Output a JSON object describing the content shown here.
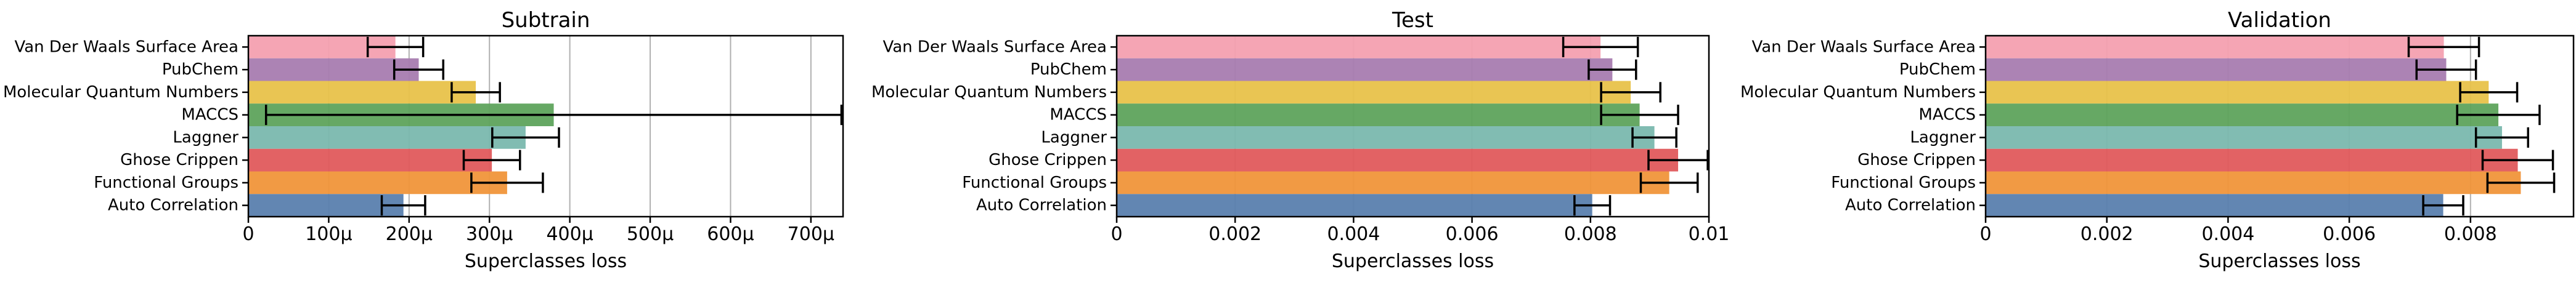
{
  "chart_data": [
    {
      "type": "bar",
      "orientation": "horizontal",
      "title": "Subtrain",
      "xlabel": "Superclasses loss",
      "ylabel": "",
      "xlim": [
        0,
        0.00074
      ],
      "xticks": [
        0,
        0.0001,
        0.0002,
        0.0003,
        0.0004,
        0.0005,
        0.0006,
        0.0007
      ],
      "xtick_labels": [
        "0",
        "100μ",
        "200μ",
        "300μ",
        "400μ",
        "500μ",
        "600μ",
        "700μ"
      ],
      "grid": "x",
      "categories": [
        "Van Der Waals Surface Area",
        "PubChem",
        "Molecular Quantum Numbers",
        "MACCS",
        "Laggner",
        "Ghose Crippen",
        "Functional Groups",
        "Auto Correlation"
      ],
      "values": [
        0.000183,
        0.000212,
        0.000283,
        0.00038,
        0.000345,
        0.000303,
        0.000322,
        0.000193
      ],
      "errors": [
        3.45e-05,
        3.05e-05,
        3e-05,
        0.000358,
        4.15e-05,
        3.5e-05,
        4.45e-05,
        2.7e-05
      ],
      "colors": [
        "#f4a0b0",
        "#a87cb0",
        "#e8c24a",
        "#5ea35c",
        "#7ab8ae",
        "#e05a5c",
        "#f0953a",
        "#5a7fae"
      ]
    },
    {
      "type": "bar",
      "orientation": "horizontal",
      "title": "Test",
      "xlabel": "Superclasses loss",
      "ylabel": "",
      "xlim": [
        0,
        0.01
      ],
      "xticks": [
        0,
        0.002,
        0.004,
        0.006,
        0.008,
        0.01
      ],
      "xtick_labels": [
        "0",
        "0.002",
        "0.004",
        "0.006",
        "0.008",
        "0.01"
      ],
      "grid": "x",
      "categories": [
        "Van Der Waals Surface Area",
        "PubChem",
        "Molecular Quantum Numbers",
        "MACCS",
        "Laggner",
        "Ghose Crippen",
        "Functional Groups",
        "Auto Correlation"
      ],
      "values": [
        0.00817,
        0.00837,
        0.00868,
        0.00883,
        0.00908,
        0.00948,
        0.00933,
        0.00803
      ],
      "errors": [
        0.00063,
        0.0004,
        0.0005,
        0.00065,
        0.00037,
        0.0005,
        0.00048,
        0.0003
      ],
      "colors": [
        "#f4a0b0",
        "#a87cb0",
        "#e8c24a",
        "#5ea35c",
        "#7ab8ae",
        "#e05a5c",
        "#f0953a",
        "#5a7fae"
      ]
    },
    {
      "type": "bar",
      "orientation": "horizontal",
      "title": "Validation",
      "xlabel": "Superclasses loss",
      "ylabel": "",
      "xlim": [
        0,
        0.0097
      ],
      "xticks": [
        0,
        0.002,
        0.004,
        0.006,
        0.008
      ],
      "xtick_labels": [
        "0",
        "0.002",
        "0.004",
        "0.006",
        "0.008"
      ],
      "grid": "x",
      "categories": [
        "Van Der Waals Surface Area",
        "PubChem",
        "Molecular Quantum Numbers",
        "MACCS",
        "Laggner",
        "Ghose Crippen",
        "Functional Groups",
        "Auto Correlation"
      ],
      "values": [
        0.00756,
        0.0076,
        0.0083,
        0.00846,
        0.00852,
        0.00878,
        0.00883,
        0.00755
      ],
      "errors": [
        0.00058,
        0.00049,
        0.00047,
        0.00068,
        0.00043,
        0.00058,
        0.00055,
        0.00033
      ],
      "colors": [
        "#f4a0b0",
        "#a87cb0",
        "#e8c24a",
        "#5ea35c",
        "#7ab8ae",
        "#e05a5c",
        "#f0953a",
        "#5a7fae"
      ]
    }
  ]
}
